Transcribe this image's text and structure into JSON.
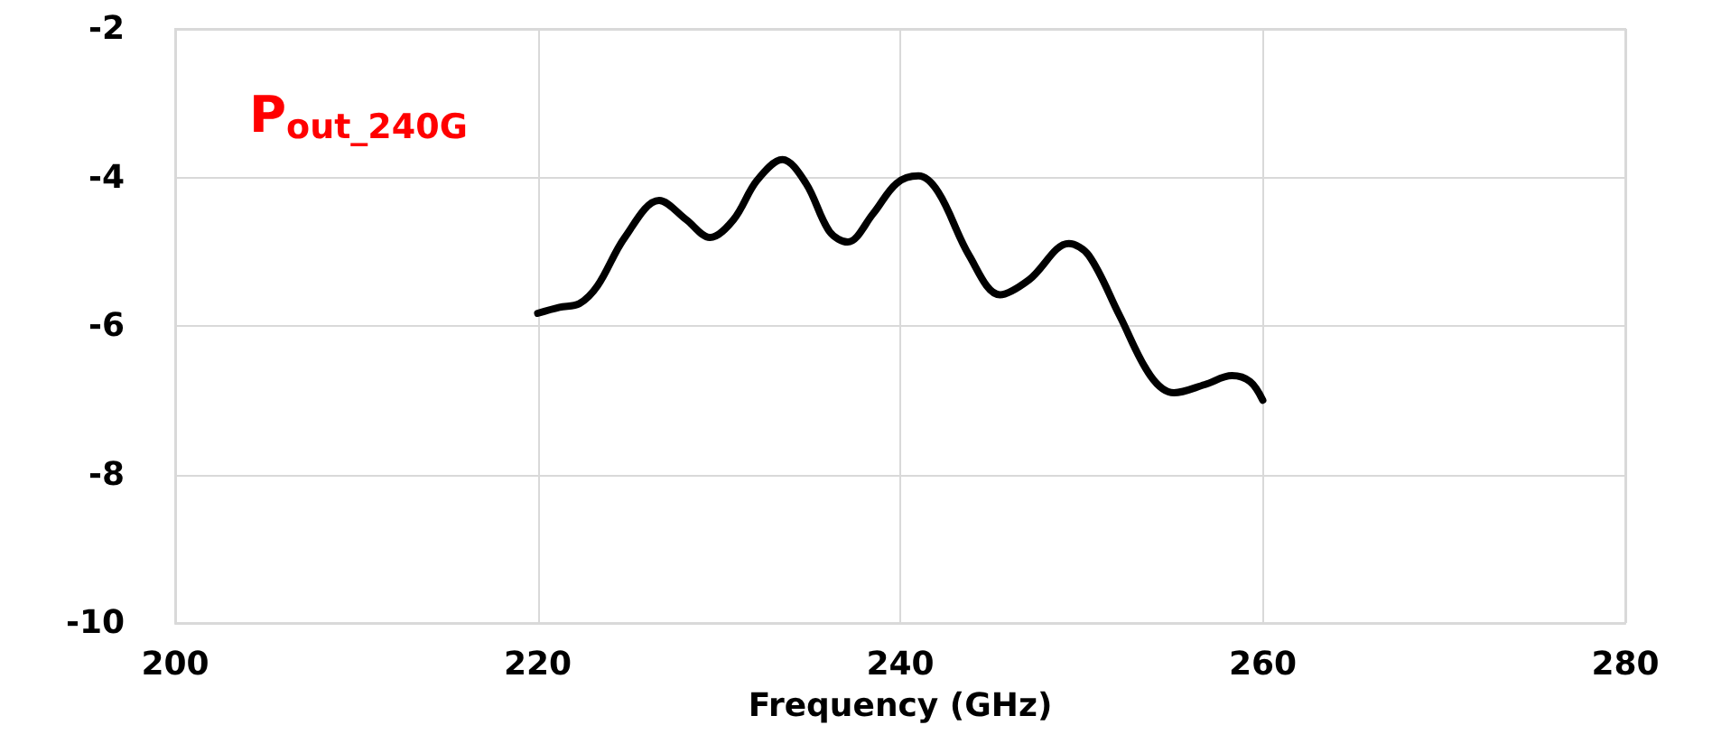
{
  "chart_data": {
    "type": "line",
    "xlabel": "Frequency (GHz)",
    "annotations": [
      "P$_{out_240G}$"
    ],
    "x": [
      220,
      221.2,
      222.3,
      223.3,
      224.8,
      226.7,
      228.2,
      229.5,
      230.8,
      232.1,
      233.5,
      234.8,
      236.1,
      237.1,
      238.5,
      239.8,
      241,
      242.1,
      243.8,
      245.5,
      247.1,
      249.3,
      250.4,
      252.1,
      253.8,
      255.1,
      256.8,
      258.3,
      259.3,
      260
    ],
    "series": [
      {
        "color": "#000000",
        "values": [
          -5.83,
          -5.75,
          -5.7,
          -5.46,
          -4.81,
          -4.31,
          -4.57,
          -4.81,
          -4.57,
          -4.04,
          -3.76,
          -4.08,
          -4.73,
          -4.87,
          -4.49,
          -4.08,
          -3.98,
          -4.2,
          -5.05,
          -5.58,
          -5.38,
          -4.89,
          -5.05,
          -5.86,
          -6.67,
          -6.9,
          -6.79,
          -6.67,
          -6.75,
          -7.0
        ]
      }
    ],
    "xlim": [
      200,
      280
    ],
    "xticks": [
      200,
      220,
      240,
      260,
      280
    ],
    "ylim": [
      -10,
      -2
    ],
    "yticks": [
      -10,
      -8,
      -6,
      -4,
      -2
    ],
    "grid": true,
    "marker": "none",
    "line_style": "solid"
  }
}
